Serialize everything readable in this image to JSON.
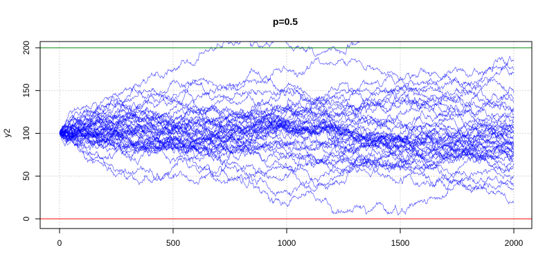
{
  "chart_data": {
    "type": "line",
    "title": "p=0.5",
    "xlabel": "",
    "ylabel": "y2",
    "xlim": [
      0,
      2000
    ],
    "ylim": [
      0,
      210
    ],
    "x_ticks": [
      0,
      500,
      1000,
      1500,
      2000
    ],
    "y_ticks": [
      0,
      50,
      100,
      150,
      200
    ],
    "grid": true,
    "steps": 2000,
    "start_value": 100,
    "series_count": 40,
    "series_color": "#0000ff",
    "reference_lines": [
      {
        "y": 200,
        "color": "#008000"
      },
      {
        "y": 0,
        "color": "#ff0000"
      }
    ],
    "series_end_values": [
      185,
      175,
      170,
      147,
      140,
      137,
      130,
      128,
      122,
      120,
      118,
      113,
      110,
      108,
      105,
      103,
      101,
      100,
      98,
      95,
      92,
      90,
      88,
      86,
      84,
      82,
      80,
      78,
      77,
      76,
      75,
      73,
      70,
      68,
      65,
      60,
      50,
      38,
      35,
      20
    ]
  }
}
